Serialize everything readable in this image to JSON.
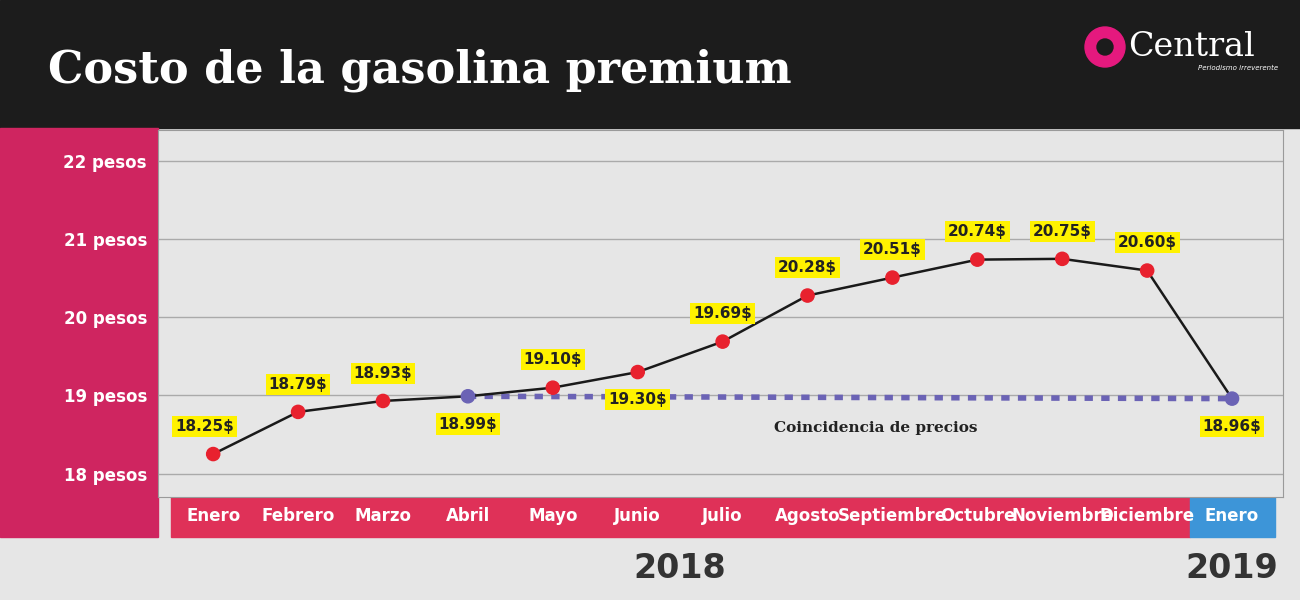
{
  "chart_data": {
    "type": "line",
    "title": "Costo de la gasolina premium",
    "brand": "Central",
    "brand_tagline": "Periodismo irreverente",
    "categories": [
      "Enero",
      "Febrero",
      "Marzo",
      "Abril",
      "Mayo",
      "Junio",
      "Julio",
      "Agosto",
      "Septiembre",
      "Octubre",
      "Noviembre",
      "Diciembre",
      "Enero"
    ],
    "periods": [
      "2018",
      "2018",
      "2018",
      "2018",
      "2018",
      "2018",
      "2018",
      "2018",
      "2018",
      "2018",
      "2018",
      "2018",
      "2019"
    ],
    "values": [
      18.25,
      18.79,
      18.93,
      18.99,
      19.1,
      19.3,
      19.69,
      20.28,
      20.51,
      20.74,
      20.75,
      20.6,
      18.96
    ],
    "value_labels": [
      "18.25$",
      "18.79$",
      "18.93$",
      "18.99$",
      "19.10$",
      "19.30$",
      "19.69$",
      "20.28$",
      "20.51$",
      "20.74$",
      "20.75$",
      "20.60$",
      "18.96$"
    ],
    "color": "#1a1a1a",
    "colors": [
      "#e8212e",
      "#e8212e",
      "#e8212e",
      "#6b63b5",
      "#e8212e",
      "#e8212e",
      "#e8212e",
      "#e8212e",
      "#e8212e",
      "#e8212e",
      "#e8212e",
      "#e8212e",
      "#6b63b5"
    ],
    "marker": "o",
    "annotation": "Coincidencia de precios",
    "ylim": [
      17.7,
      22.4
    ],
    "yticks": [
      {
        "value": 18,
        "label": "18 pesos"
      },
      {
        "value": 19,
        "label": "19 pesos"
      },
      {
        "value": 20,
        "label": "20 pesos"
      },
      {
        "value": 21,
        "label": "21 pesos"
      },
      {
        "value": 22,
        "label": "22 pesos"
      }
    ],
    "grid": true,
    "data_labels": true
  }
}
